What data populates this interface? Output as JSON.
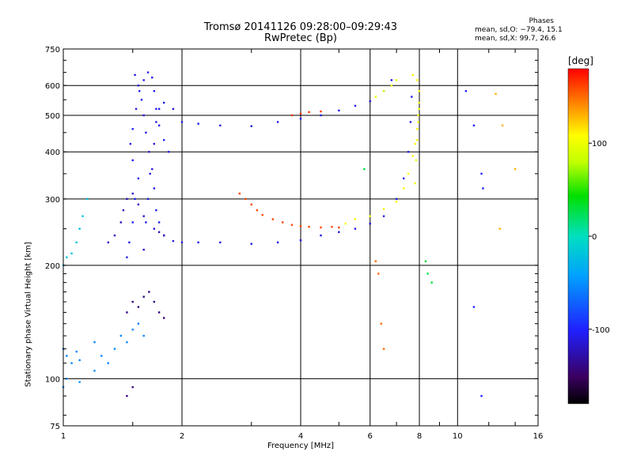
{
  "chart_data": {
    "type": "scatter",
    "title_line1": "Tromsø 20141126 09:28:00–09:29:43",
    "title_line2": "RwPretec (Bp)",
    "stats": {
      "heading": "Phases",
      "line1": "mean, sd,O: −79.4, 15.1",
      "line2": "mean, sd,X:  99.7, 26.6"
    },
    "xlabel": "Frequency [MHz]",
    "ylabel": "Stationary phase Virtual Height [km]",
    "x_scale": "log",
    "y_scale": "log",
    "xlim": [
      1,
      16
    ],
    "ylim": [
      75,
      750
    ],
    "x_ticks": [
      1,
      2,
      4,
      6,
      8,
      10,
      16
    ],
    "y_ticks": [
      75,
      100,
      200,
      300,
      400,
      500,
      600,
      750
    ],
    "grid": true,
    "colorbar": {
      "label": "[deg]",
      "range": [
        -180,
        180
      ],
      "ticks": [
        100,
        0,
        -100
      ]
    },
    "series": [
      {
        "phase": -110,
        "points": [
          [
            1.52,
            640
          ],
          [
            1.55,
            600
          ],
          [
            1.58,
            550
          ],
          [
            1.6,
            500
          ],
          [
            1.62,
            450
          ],
          [
            1.65,
            400
          ],
          [
            1.68,
            360
          ],
          [
            1.7,
            320
          ],
          [
            1.72,
            280
          ],
          [
            1.75,
            260
          ],
          [
            1.8,
            240
          ],
          [
            1.9,
            232
          ],
          [
            2.0,
            230
          ],
          [
            2.2,
            230
          ],
          [
            2.5,
            230
          ],
          [
            3.0,
            228
          ],
          [
            3.5,
            230
          ],
          [
            4.0,
            233
          ],
          [
            4.5,
            240
          ],
          [
            5.0,
            245
          ],
          [
            5.5,
            250
          ],
          [
            6.0,
            258
          ],
          [
            6.5,
            270
          ],
          [
            7.0,
            300
          ],
          [
            7.3,
            340
          ],
          [
            7.5,
            400
          ],
          [
            7.6,
            480
          ],
          [
            7.65,
            560
          ]
        ]
      },
      {
        "phase": -110,
        "points": [
          [
            1.6,
            220
          ],
          [
            1.62,
            260
          ],
          [
            1.64,
            300
          ],
          [
            1.66,
            350
          ],
          [
            1.7,
            420
          ],
          [
            1.72,
            480
          ],
          [
            1.75,
            520
          ],
          [
            1.8,
            540
          ],
          [
            1.9,
            520
          ],
          [
            2.0,
            480
          ],
          [
            2.2,
            475
          ],
          [
            2.5,
            470
          ],
          [
            3.0,
            468
          ],
          [
            3.5,
            480
          ],
          [
            4.0,
            490
          ],
          [
            4.5,
            500
          ],
          [
            5.0,
            515
          ],
          [
            5.5,
            530
          ],
          [
            6.0,
            545
          ],
          [
            6.5,
            580
          ],
          [
            6.8,
            620
          ]
        ]
      },
      {
        "phase": -105,
        "points": [
          [
            1.45,
            210
          ],
          [
            1.47,
            230
          ],
          [
            1.5,
            260
          ],
          [
            1.52,
            300
          ],
          [
            1.55,
            340
          ],
          [
            1.5,
            380
          ],
          [
            1.48,
            420
          ],
          [
            1.5,
            460
          ],
          [
            1.53,
            520
          ],
          [
            1.56,
            580
          ],
          [
            1.6,
            620
          ],
          [
            1.64,
            650
          ],
          [
            1.68,
            630
          ],
          [
            1.7,
            580
          ],
          [
            1.72,
            520
          ],
          [
            1.75,
            470
          ],
          [
            1.8,
            430
          ],
          [
            1.85,
            400
          ]
        ]
      },
      {
        "phase": -120,
        "points": [
          [
            1.3,
            230
          ],
          [
            1.35,
            240
          ],
          [
            1.4,
            260
          ],
          [
            1.42,
            280
          ],
          [
            1.45,
            300
          ],
          [
            1.5,
            310
          ],
          [
            1.55,
            290
          ],
          [
            1.6,
            270
          ],
          [
            1.7,
            250
          ],
          [
            1.75,
            245
          ],
          [
            1.8,
            240
          ]
        ]
      },
      {
        "phase": 160,
        "points": [
          [
            2.8,
            310
          ],
          [
            2.9,
            300
          ],
          [
            3.0,
            290
          ],
          [
            3.1,
            280
          ],
          [
            3.2,
            272
          ],
          [
            3.4,
            265
          ],
          [
            3.6,
            260
          ],
          [
            3.8,
            256
          ],
          [
            4.0,
            254
          ],
          [
            4.2,
            253
          ],
          [
            4.5,
            252
          ],
          [
            4.8,
            253
          ],
          [
            5.0,
            252
          ]
        ]
      },
      {
        "phase": 165,
        "points": [
          [
            3.8,
            500
          ],
          [
            4.0,
            505
          ],
          [
            4.2,
            510
          ],
          [
            4.5,
            512
          ]
        ]
      },
      {
        "phase": 110,
        "points": [
          [
            5.2,
            258
          ],
          [
            5.5,
            265
          ],
          [
            6.0,
            270
          ],
          [
            6.5,
            282
          ],
          [
            7.0,
            295
          ],
          [
            7.3,
            320
          ],
          [
            7.5,
            350
          ],
          [
            7.7,
            390
          ],
          [
            7.8,
            420
          ],
          [
            7.9,
            460
          ],
          [
            7.95,
            500
          ],
          [
            7.98,
            540
          ],
          [
            8.0,
            580
          ],
          [
            7.9,
            620
          ],
          [
            7.7,
            640
          ]
        ]
      },
      {
        "phase": 100,
        "points": [
          [
            7.8,
            330
          ],
          [
            7.85,
            380
          ],
          [
            7.9,
            430
          ],
          [
            7.95,
            480
          ],
          [
            7.98,
            520
          ]
        ]
      },
      {
        "phase": 95,
        "points": [
          [
            6.2,
            560
          ],
          [
            6.5,
            580
          ],
          [
            6.8,
            600
          ],
          [
            7.0,
            620
          ]
        ]
      },
      {
        "phase": -20,
        "points": [
          [
            1.0,
            200
          ],
          [
            1.02,
            210
          ],
          [
            1.05,
            215
          ],
          [
            1.08,
            230
          ],
          [
            1.1,
            250
          ],
          [
            1.12,
            270
          ],
          [
            1.15,
            300
          ]
        ]
      },
      {
        "phase": -55,
        "points": [
          [
            1.0,
            120
          ],
          [
            1.02,
            115
          ],
          [
            1.05,
            110
          ],
          [
            1.08,
            118
          ],
          [
            1.1,
            112
          ],
          [
            1.2,
            125
          ],
          [
            1.25,
            115
          ],
          [
            1.3,
            110
          ],
          [
            1.35,
            120
          ],
          [
            1.4,
            130
          ],
          [
            1.45,
            125
          ],
          [
            1.5,
            135
          ],
          [
            1.55,
            140
          ],
          [
            1.6,
            130
          ]
        ]
      },
      {
        "phase": -140,
        "points": [
          [
            1.45,
            150
          ],
          [
            1.5,
            160
          ],
          [
            1.55,
            155
          ],
          [
            1.6,
            165
          ],
          [
            1.65,
            170
          ],
          [
            1.7,
            160
          ],
          [
            1.75,
            150
          ],
          [
            1.8,
            145
          ],
          [
            1.5,
            95
          ],
          [
            1.45,
            90
          ]
        ]
      },
      {
        "phase": -50,
        "points": [
          [
            1.0,
            95
          ],
          [
            1.02,
            100
          ],
          [
            1.1,
            98
          ],
          [
            1.2,
            105
          ]
        ]
      },
      {
        "phase": -100,
        "points": [
          [
            10.5,
            580
          ],
          [
            11.0,
            470
          ],
          [
            11.5,
            350
          ],
          [
            11.6,
            320
          ],
          [
            11.0,
            155
          ],
          [
            11.5,
            90
          ]
        ]
      },
      {
        "phase": 130,
        "points": [
          [
            12.5,
            570
          ],
          [
            13.0,
            470
          ],
          [
            14.0,
            360
          ],
          [
            12.8,
            250
          ]
        ]
      },
      {
        "phase": 150,
        "points": [
          [
            6.2,
            205
          ],
          [
            6.3,
            190
          ],
          [
            6.4,
            140
          ],
          [
            6.5,
            120
          ]
        ]
      },
      {
        "phase": 30,
        "points": [
          [
            8.3,
            205
          ],
          [
            8.4,
            190
          ],
          [
            8.6,
            180
          ],
          [
            5.8,
            360
          ]
        ]
      }
    ]
  }
}
